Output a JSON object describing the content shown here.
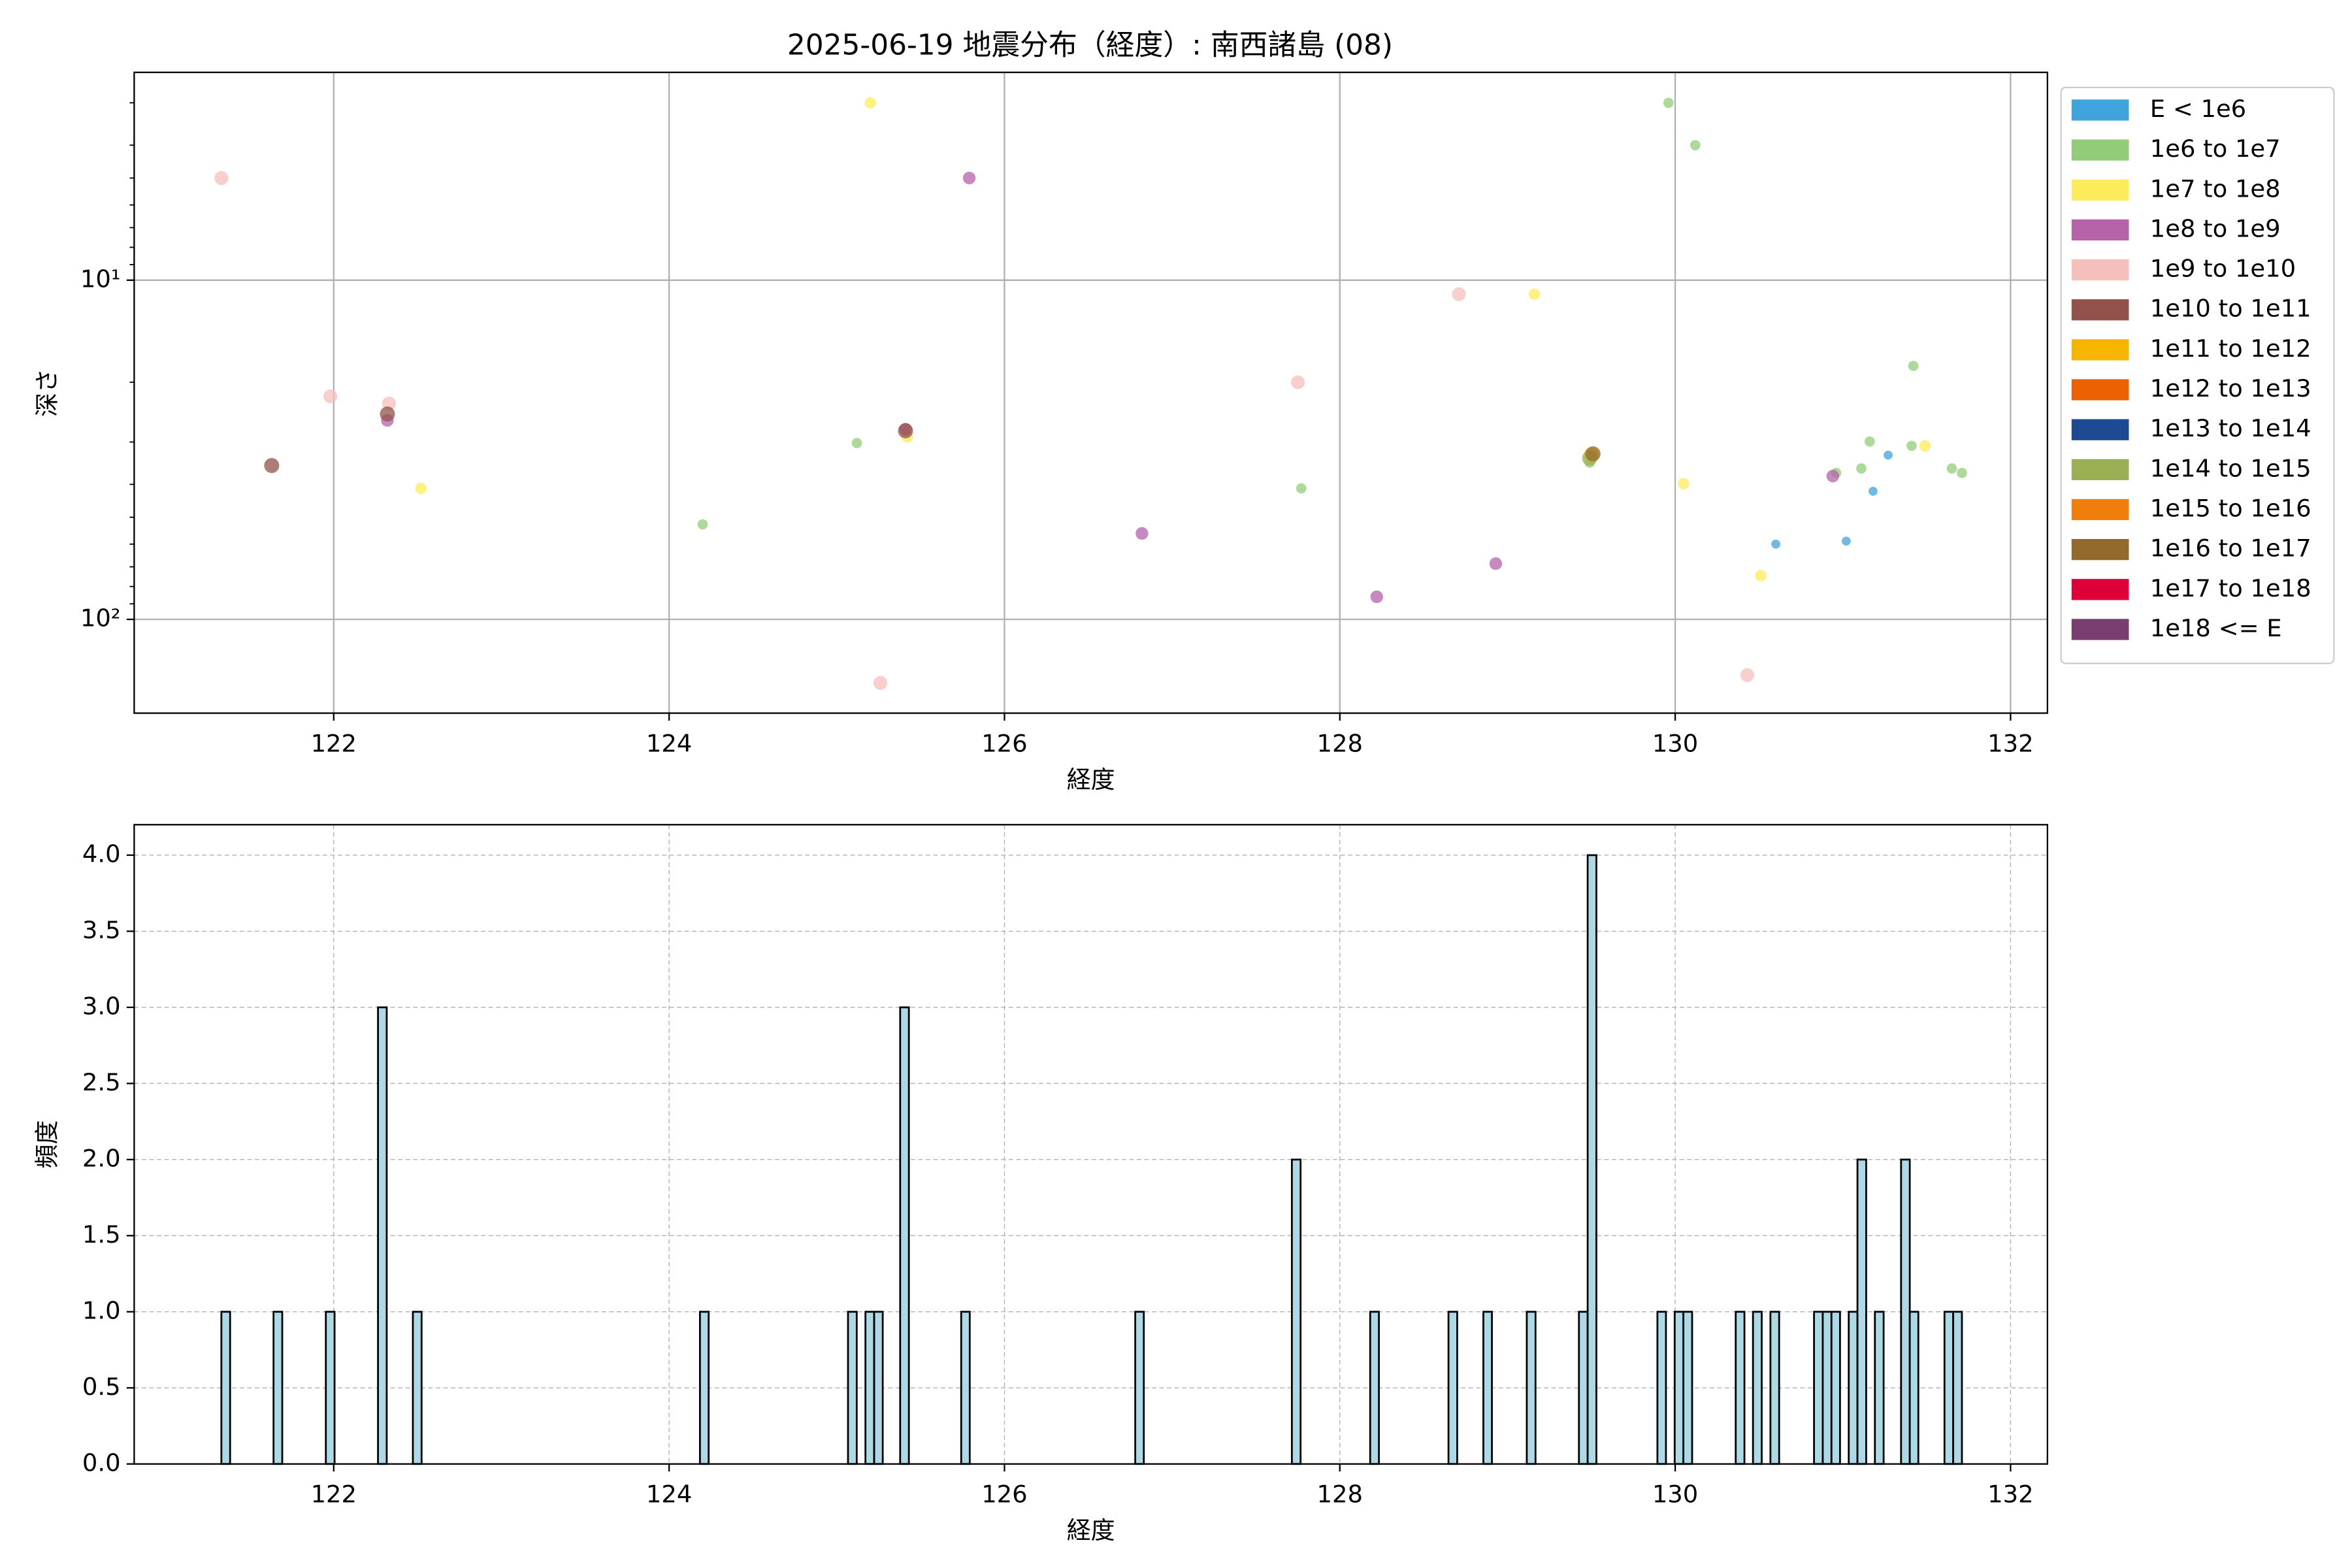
{
  "chart_data": [
    {
      "type": "scatter",
      "title": "2025-06-19 地震分布（経度）: 南西諸島 (08)",
      "xlabel": "経度",
      "ylabel": "深さ",
      "xlim": [
        120.81,
        132.22
      ],
      "xticks": [
        122,
        124,
        126,
        128,
        130,
        132
      ],
      "ylim": [
        189,
        2.44
      ],
      "yscale": "log",
      "yticks": [
        {
          "value": 10,
          "label": "10¹"
        },
        {
          "value": 100,
          "label": "10²"
        }
      ],
      "yminorticks": [
        3,
        4,
        5,
        6,
        7,
        8,
        9,
        20,
        30,
        40,
        50,
        60,
        70,
        80,
        90
      ],
      "grid": true,
      "legend": "outside upper right",
      "series": [
        {
          "name": "E < 1e6",
          "color": "#40a4dc",
          "x": [
            130.6,
            131.02,
            131.18,
            131.27
          ],
          "values": [
            60.0,
            58.8,
            41.9,
            32.8
          ]
        },
        {
          "name": "1e6 to 1e7",
          "color": "#92cc78",
          "x": [
            124.2,
            125.12,
            127.77,
            129.49,
            129.96,
            130.12,
            130.96,
            131.11,
            131.16,
            131.41,
            131.42,
            131.65,
            131.71
          ],
          "values": [
            52.5,
            30.2,
            41.1,
            34.5,
            3.0,
            4.0,
            37.0,
            35.9,
            29.9,
            30.8,
            17.9,
            35.9,
            37.0
          ]
        },
        {
          "name": "1e7 to 1e8",
          "color": "#fcec5c",
          "x": [
            122.52,
            125.2,
            125.42,
            129.16,
            130.05,
            130.51,
            131.49
          ],
          "values": [
            41.1,
            3.0,
            29.0,
            11.0,
            39.8,
            74.3,
            30.8
          ]
        },
        {
          "name": "1e8 to 1e9",
          "color": "#b663a8",
          "x": [
            122.32,
            125.79,
            126.82,
            128.22,
            128.93,
            130.94,
            125.41
          ],
          "values": [
            25.9,
            5.0,
            55.8,
            85.8,
            68.5,
            37.8,
            27.5
          ]
        },
        {
          "name": "1e9 to 1e10",
          "color": "#f5bfbb",
          "x": [
            121.33,
            121.98,
            122.33,
            125.26,
            127.75,
            128.71,
            130.43
          ],
          "values": [
            5.0,
            22.0,
            23.1,
            154,
            20.0,
            11.0,
            146
          ]
        },
        {
          "name": "1e10 to 1e11",
          "color": "#92514b",
          "x": [
            121.63,
            122.32,
            125.41
          ],
          "values": [
            35.2,
            24.8,
            27.8
          ]
        },
        {
          "name": "1e11 to 1e12",
          "color": "#f7b500",
          "x": [
            129.5
          ],
          "values": [
            32.8
          ]
        },
        {
          "name": "1e12 to 1e13",
          "color": "#ec6100",
          "x": [],
          "values": []
        },
        {
          "name": "1e13 to 1e14",
          "color": "#1c4b94",
          "x": [],
          "values": []
        },
        {
          "name": "1e14 to 1e15",
          "color": "#9bb054",
          "x": [
            129.49
          ],
          "values": [
            33.5
          ]
        },
        {
          "name": "1e15 to 1e16",
          "color": "#f07e0c",
          "x": [],
          "values": []
        },
        {
          "name": "1e16 to 1e17",
          "color": "#936a2c",
          "x": [
            129.51
          ],
          "values": [
            32.5
          ]
        },
        {
          "name": "1e17 to 1e18",
          "color": "#de0039",
          "x": [],
          "values": []
        },
        {
          "name": "1e18 <= E",
          "color": "#793d6f",
          "x": [],
          "values": []
        }
      ]
    },
    {
      "type": "histogram",
      "xlabel": "経度",
      "ylabel": "頻度",
      "xlim": [
        120.81,
        132.22
      ],
      "xticks": [
        122,
        124,
        126,
        128,
        130,
        132
      ],
      "ylim": [
        0,
        4.2
      ],
      "yticks": [
        {
          "value": 0,
          "label": "0.0"
        },
        {
          "value": 0.5,
          "label": "0.5"
        },
        {
          "value": 1,
          "label": "1.0"
        },
        {
          "value": 1.5,
          "label": "1.5"
        },
        {
          "value": 2,
          "label": "2.0"
        },
        {
          "value": 2.5,
          "label": "2.5"
        },
        {
          "value": 3,
          "label": "3.0"
        },
        {
          "value": 3.5,
          "label": "3.5"
        },
        {
          "value": 4,
          "label": "4.0"
        }
      ],
      "grid": true,
      "grid_linestyle": "dashed",
      "color": "#add8e6",
      "edgecolor": "#000000",
      "bins": [
        121.33,
        121.382,
        121.641,
        121.693,
        121.953,
        122.005,
        122.264,
        122.316,
        122.472,
        122.524,
        124.184,
        124.236,
        125.067,
        125.119,
        125.171,
        125.223,
        125.274,
        125.378,
        125.43,
        125.742,
        125.793,
        126.78,
        126.831,
        127.714,
        127.766,
        128.181,
        128.233,
        128.648,
        128.7,
        128.856,
        128.907,
        129.115,
        129.167,
        129.426,
        129.478,
        129.53,
        129.894,
        129.945,
        129.997,
        130.049,
        130.101,
        130.361,
        130.413,
        130.464,
        130.516,
        130.568,
        130.62,
        130.828,
        130.88,
        130.932,
        130.983,
        131.035,
        131.087,
        131.139,
        131.191,
        131.243,
        131.347,
        131.399,
        131.45,
        131.606,
        131.658,
        131.71
      ],
      "counts": [
        1,
        0,
        1,
        0,
        1,
        0,
        3,
        0,
        1,
        0,
        1,
        0,
        1,
        0,
        1,
        1,
        0,
        3,
        0,
        1,
        0,
        1,
        0,
        2,
        0,
        1,
        0,
        1,
        0,
        1,
        0,
        1,
        0,
        1,
        4,
        0,
        1,
        0,
        1,
        1,
        0,
        1,
        0,
        1,
        0,
        1,
        0,
        1,
        1,
        1,
        0,
        1,
        2,
        0,
        1,
        0,
        2,
        1,
        0,
        1,
        1
      ]
    }
  ]
}
